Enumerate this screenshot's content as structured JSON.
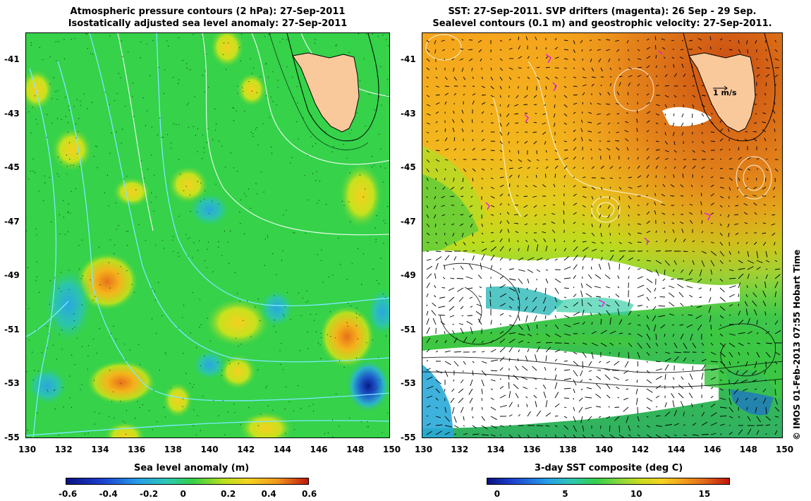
{
  "left_panel": {
    "title_line1": "Atmospheric pressure contours (2 hPa): 27-Sep-2011",
    "title_line2": "Isostatically adjusted sea level anomaly: 27-Sep-2011",
    "x_ticks": [
      "130",
      "132",
      "134",
      "136",
      "138",
      "140",
      "142",
      "144",
      "146",
      "148",
      "150"
    ],
    "y_ticks": [
      "-41",
      "-43",
      "-45",
      "-47",
      "-49",
      "-51",
      "-53",
      "-55"
    ],
    "colorbar_title": "Sea level anomaly (m)",
    "colorbar_ticks": [
      "-0.6",
      "-0.4",
      "-0.2",
      "0",
      "0.2",
      "0.4",
      "0.6"
    ]
  },
  "right_panel": {
    "title_line1": "SST: 27-Sep-2011. SVP drifters (magenta): 26 Sep - 29 Sep.",
    "title_line2": "Sealevel contours (0.1 m) and geostrophic velocity: 27-Sep-2011.",
    "x_ticks": [
      "130",
      "132",
      "134",
      "136",
      "138",
      "140",
      "142",
      "144",
      "146",
      "148",
      "150"
    ],
    "y_ticks": [
      "-41",
      "-43",
      "-45",
      "-47",
      "-49",
      "-51",
      "-53",
      "-55"
    ],
    "colorbar_title": "3-day SST composite (deg C)",
    "colorbar_ticks": [
      "0",
      "5",
      "10",
      "15"
    ],
    "velocity_scale_label": "1 m/s"
  },
  "credit": "© IMOS 01-Feb-2013 07:55 Hobart Time",
  "colors": {
    "land": "#f9c99c",
    "sla_background": "#35d24a",
    "sst_warm": "#f2a51e",
    "sst_mid": "#c8dc1e",
    "cloud": "#ffffff",
    "drifter": "#e020e0",
    "pressure_contour": "#7fe8ff"
  }
}
